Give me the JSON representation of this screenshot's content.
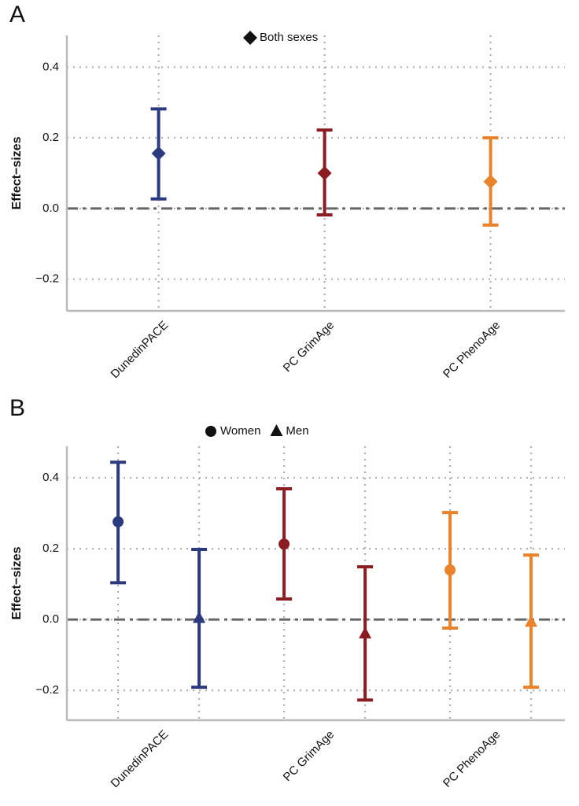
{
  "chart_data": [
    {
      "type": "errorbar",
      "panel": "A",
      "y_label": "Effect−sizes",
      "categories": [
        "DunedinPACE",
        "PC GrimAge",
        "PC PhenoAge"
      ],
      "colors": [
        "#2b3a7e",
        "#8b1c22",
        "#e8832b"
      ],
      "series": [
        {
          "name": "Both sexes",
          "marker": "diamond",
          "values": [
            0.156,
            0.1,
            0.076
          ],
          "lower": [
            0.027,
            -0.018,
            -0.047
          ],
          "upper": [
            0.282,
            0.222,
            0.2
          ]
        }
      ],
      "ylim": [
        -0.29,
        0.49
      ],
      "yticks": [
        0.4,
        0.2,
        {
          "value": 0,
          "label": "0.0"
        },
        {
          "value": -0.2,
          "label": "−0.2"
        }
      ],
      "reference_line": 0,
      "grid": true
    },
    {
      "type": "errorbar",
      "panel": "B",
      "y_label": "Effect−sizes",
      "categories": [
        "DunedinPACE",
        "PC GrimAge",
        "PC PhenoAge"
      ],
      "colors": [
        "#2b3a7e",
        "#8b1c22",
        "#e8832b"
      ],
      "series": [
        {
          "name": "Women",
          "marker": "circle",
          "values": [
            0.276,
            0.213,
            0.14
          ],
          "lower": [
            0.104,
            0.058,
            -0.024
          ],
          "upper": [
            0.444,
            0.369,
            0.302
          ]
        },
        {
          "name": "Men",
          "marker": "triangle",
          "values": [
            0.004,
            -0.04,
            -0.007
          ],
          "lower": [
            -0.191,
            -0.227,
            -0.191
          ],
          "upper": [
            0.198,
            0.149,
            0.182
          ]
        }
      ],
      "ylim": [
        -0.284,
        0.489
      ],
      "yticks": [
        0.4,
        0.2,
        {
          "value": 0,
          "label": "0.0"
        },
        {
          "value": -0.2,
          "label": "−0.2"
        }
      ],
      "reference_line": 0,
      "grid": true
    }
  ]
}
